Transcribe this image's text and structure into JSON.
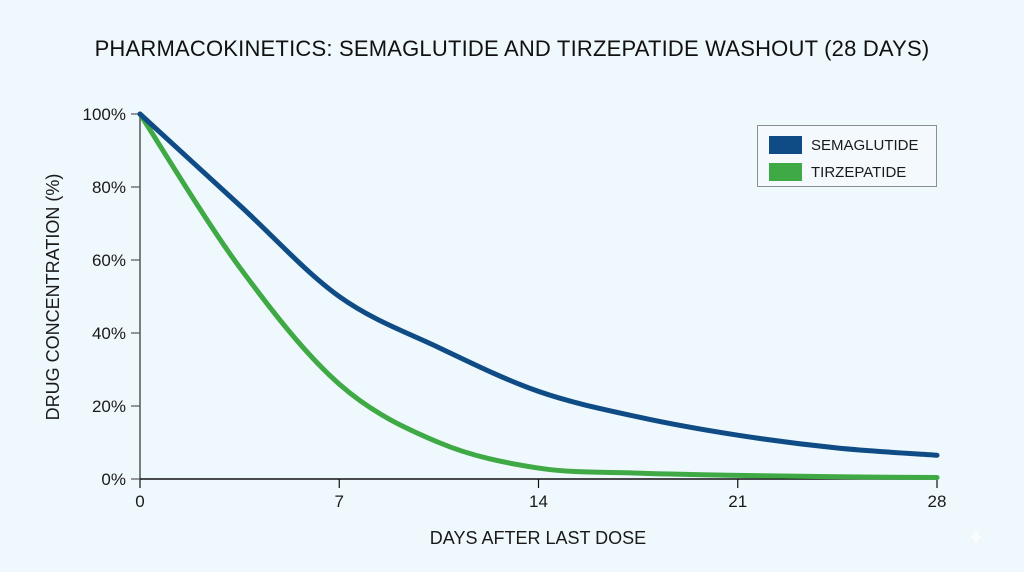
{
  "chart_data": {
    "type": "line",
    "title": "PHARMACOKINETICS: SEMAGLUTIDE AND TIRZEPATIDE WASHOUT (28 DAYS)",
    "xlabel": "DAYS AFTER LAST DOSE",
    "ylabel": "DRUG CONCENTRATION (%)",
    "x_ticks": [
      "0",
      "7",
      "14",
      "21",
      "28"
    ],
    "y_ticks": [
      "0%",
      "20%",
      "40%",
      "60%",
      "80%",
      "100%"
    ],
    "xlim": [
      0,
      28
    ],
    "ylim": [
      0,
      100
    ],
    "grid": false,
    "legend_position": "upper right",
    "x": [
      0,
      3.5,
      7,
      10.5,
      14,
      17.5,
      21,
      24.5,
      28
    ],
    "series": [
      {
        "name": "SEMAGLUTIDE",
        "color": "#0f4c86",
        "values": [
          100,
          75,
          50,
          36,
          24,
          17,
          12,
          8.5,
          6.5
        ]
      },
      {
        "name": "TIRZEPATIDE",
        "color": "#3faa45",
        "values": [
          100,
          58,
          26,
          10,
          3,
          1.6,
          1,
          0.6,
          0.4
        ]
      }
    ]
  },
  "legend": {
    "items": [
      {
        "label": "SEMAGLUTIDE",
        "color": "#0f4c86"
      },
      {
        "label": "TIRZEPATIDE",
        "color": "#3faa45"
      }
    ]
  },
  "colors": {
    "background": "#eff8fc",
    "axis": "#111111"
  }
}
